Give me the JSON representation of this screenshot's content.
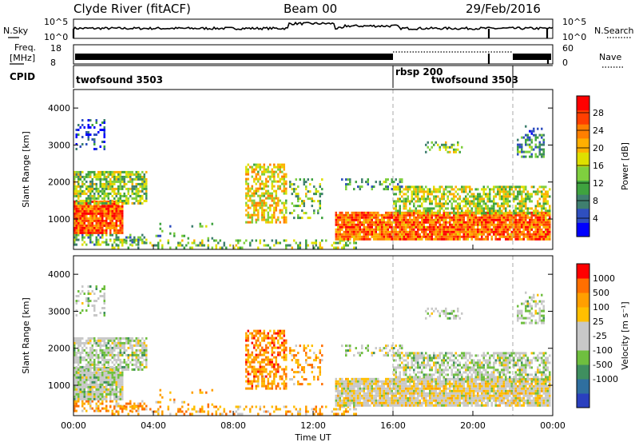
{
  "header": {
    "station": "Clyde River (fitACF)",
    "beam": "Beam 00",
    "date": "29/Feb/2016"
  },
  "labels": {
    "nsky": "N.Sky",
    "nsearch": "N.Search",
    "freq_line1": "Freq.",
    "freq_line2": "[MHz]",
    "nave": "Nave",
    "cpid": "CPID",
    "nsky_top": "10^5",
    "nsky_bottom": "10^0",
    "nsearch_top": "10^5",
    "nsearch_bottom": "10^0",
    "freq_top": "18",
    "freq_bottom": "8",
    "nave_top": "60",
    "nave_bottom": "0"
  },
  "cpid_segments": [
    {
      "label": "twofsound 3503",
      "start_hour": 0,
      "end_hour": 16
    },
    {
      "label": "rbsp 200",
      "start_hour": 16,
      "end_hour": 22
    },
    {
      "label": "twofsound 3503",
      "start_hour": 16,
      "end_hour": 22
    }
  ],
  "chart_data": [
    {
      "type": "heatmap",
      "name": "power",
      "ylabel": "Slant Range [km]",
      "yticks": [
        1000,
        2000,
        3000,
        4000
      ],
      "ylim": [
        180,
        4500
      ],
      "xlim_hours": [
        0,
        24
      ],
      "colorbar": {
        "label": "Power [dB]",
        "ticks": [
          "4",
          "8",
          "12",
          "16",
          "20",
          "24",
          "28"
        ],
        "range": [
          0,
          32
        ],
        "colors": [
          "#0000ff",
          "#2f4fbf",
          "#3f7f6f",
          "#3fa33f",
          "#7fcf3f",
          "#dfdf00",
          "#ffaf00",
          "#ff7f00",
          "#ff3f00",
          "#ff0000"
        ]
      }
    },
    {
      "type": "heatmap",
      "name": "velocity",
      "xlabel": "Time UT",
      "ylabel": "Slant Range [km]",
      "yticks": [
        1000,
        2000,
        3000,
        4000
      ],
      "ylim": [
        180,
        4500
      ],
      "xlim_hours": [
        0,
        24
      ],
      "xticks": [
        "00:00",
        "04:00",
        "08:00",
        "12:00",
        "16:00",
        "20:00",
        "00:00"
      ],
      "colorbar": {
        "label": "Velocity [m s⁻¹]",
        "ticks": [
          "1000",
          "500",
          "100",
          "25",
          "-25",
          "-100",
          "-500",
          "-1000"
        ],
        "colors": [
          "#2a3fbf",
          "#2f6f9f",
          "#3f8f5f",
          "#6fbf3f",
          "#c8c8c8",
          "#c8c8c8",
          "#ffbf00",
          "#ff9f00",
          "#ff6f00",
          "#ff0000"
        ]
      }
    }
  ]
}
